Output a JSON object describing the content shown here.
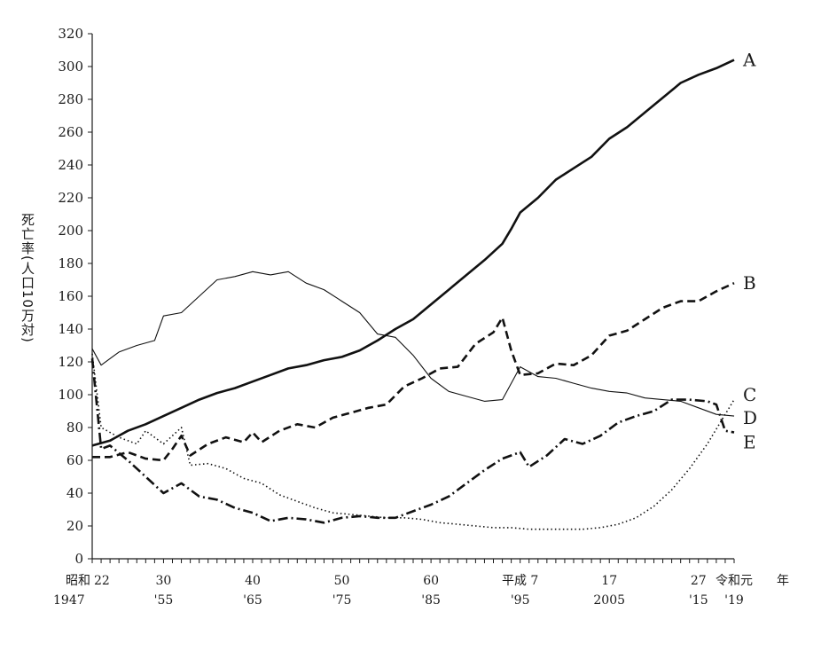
{
  "chart_data": {
    "type": "line",
    "ylabel": "死亡率(人口10万対)",
    "ylim": [
      0,
      320
    ],
    "yticks": [
      0,
      20,
      40,
      60,
      80,
      100,
      120,
      140,
      160,
      180,
      200,
      220,
      240,
      260,
      280,
      300,
      320
    ],
    "xlim": [
      1947,
      2019
    ],
    "x_tick_labels": [
      {
        "year": 1947,
        "era": "昭和 22",
        "western": "1947"
      },
      {
        "year": 1955,
        "era": "30",
        "western": "'55"
      },
      {
        "year": 1965,
        "era": "40",
        "western": "'65"
      },
      {
        "year": 1975,
        "era": "50",
        "western": "'75"
      },
      {
        "year": 1985,
        "era": "60",
        "western": "'85"
      },
      {
        "year": 1995,
        "era": "平成 7",
        "western": "'95"
      },
      {
        "year": 2005,
        "era": "17",
        "western": "2005"
      },
      {
        "year": 2015,
        "era": "27",
        "western": "'15"
      },
      {
        "year": 2019,
        "era": "令和元",
        "western": "'19"
      }
    ],
    "x_unit_label": "年",
    "series": [
      {
        "name": "A",
        "style": "solid-thick",
        "points": [
          [
            1947,
            69
          ],
          [
            1949,
            72
          ],
          [
            1951,
            78
          ],
          [
            1953,
            82
          ],
          [
            1955,
            87
          ],
          [
            1957,
            92
          ],
          [
            1959,
            97
          ],
          [
            1961,
            101
          ],
          [
            1963,
            104
          ],
          [
            1965,
            108
          ],
          [
            1967,
            112
          ],
          [
            1969,
            116
          ],
          [
            1971,
            118
          ],
          [
            1973,
            121
          ],
          [
            1975,
            123
          ],
          [
            1977,
            127
          ],
          [
            1979,
            133
          ],
          [
            1981,
            140
          ],
          [
            1983,
            146
          ],
          [
            1985,
            155
          ],
          [
            1987,
            164
          ],
          [
            1989,
            173
          ],
          [
            1991,
            182
          ],
          [
            1993,
            192
          ],
          [
            1994,
            201
          ],
          [
            1995,
            211
          ],
          [
            1997,
            220
          ],
          [
            1999,
            231
          ],
          [
            2001,
            238
          ],
          [
            2003,
            245
          ],
          [
            2005,
            256
          ],
          [
            2007,
            263
          ],
          [
            2009,
            272
          ],
          [
            2011,
            281
          ],
          [
            2013,
            290
          ],
          [
            2015,
            295
          ],
          [
            2017,
            299
          ],
          [
            2019,
            304
          ]
        ]
      },
      {
        "name": "B",
        "style": "dashed-thick",
        "points": [
          [
            1947,
            62
          ],
          [
            1949,
            62
          ],
          [
            1951,
            65
          ],
          [
            1953,
            61
          ],
          [
            1955,
            60
          ],
          [
            1956,
            67
          ],
          [
            1957,
            75
          ],
          [
            1958,
            63
          ],
          [
            1960,
            70
          ],
          [
            1962,
            74
          ],
          [
            1964,
            71
          ],
          [
            1965,
            77
          ],
          [
            1966,
            71
          ],
          [
            1968,
            78
          ],
          [
            1970,
            82
          ],
          [
            1972,
            80
          ],
          [
            1974,
            86
          ],
          [
            1976,
            89
          ],
          [
            1978,
            92
          ],
          [
            1980,
            94
          ],
          [
            1982,
            105
          ],
          [
            1984,
            110
          ],
          [
            1986,
            116
          ],
          [
            1988,
            117
          ],
          [
            1990,
            131
          ],
          [
            1992,
            138
          ],
          [
            1993,
            147
          ],
          [
            1994,
            127
          ],
          [
            1995,
            112
          ],
          [
            1997,
            113
          ],
          [
            1999,
            119
          ],
          [
            2001,
            118
          ],
          [
            2003,
            124
          ],
          [
            2005,
            136
          ],
          [
            2007,
            139
          ],
          [
            2009,
            146
          ],
          [
            2011,
            153
          ],
          [
            2013,
            157
          ],
          [
            2015,
            157
          ],
          [
            2017,
            163
          ],
          [
            2019,
            168
          ]
        ]
      },
      {
        "name": "C",
        "style": "dotted",
        "points": [
          [
            1947,
            125
          ],
          [
            1948,
            80
          ],
          [
            1950,
            74
          ],
          [
            1952,
            70
          ],
          [
            1953,
            78
          ],
          [
            1955,
            70
          ],
          [
            1957,
            80
          ],
          [
            1958,
            57
          ],
          [
            1960,
            58
          ],
          [
            1962,
            55
          ],
          [
            1964,
            49
          ],
          [
            1966,
            46
          ],
          [
            1968,
            39
          ],
          [
            1970,
            35
          ],
          [
            1972,
            31
          ],
          [
            1974,
            28
          ],
          [
            1976,
            27
          ],
          [
            1978,
            26
          ],
          [
            1980,
            25
          ],
          [
            1982,
            25
          ],
          [
            1984,
            24
          ],
          [
            1986,
            22
          ],
          [
            1988,
            21
          ],
          [
            1990,
            20
          ],
          [
            1992,
            19
          ],
          [
            1994,
            19
          ],
          [
            1996,
            18
          ],
          [
            1998,
            18
          ],
          [
            2000,
            18
          ],
          [
            2002,
            18
          ],
          [
            2004,
            19
          ],
          [
            2006,
            21
          ],
          [
            2008,
            25
          ],
          [
            2010,
            32
          ],
          [
            2012,
            42
          ],
          [
            2014,
            55
          ],
          [
            2016,
            70
          ],
          [
            2018,
            88
          ],
          [
            2019,
            97
          ]
        ]
      },
      {
        "name": "D",
        "style": "solid-thin",
        "points": [
          [
            1947,
            128
          ],
          [
            1948,
            118
          ],
          [
            1950,
            126
          ],
          [
            1952,
            130
          ],
          [
            1954,
            133
          ],
          [
            1955,
            148
          ],
          [
            1957,
            150
          ],
          [
            1959,
            160
          ],
          [
            1961,
            170
          ],
          [
            1963,
            172
          ],
          [
            1965,
            175
          ],
          [
            1967,
            173
          ],
          [
            1969,
            175
          ],
          [
            1971,
            168
          ],
          [
            1973,
            164
          ],
          [
            1975,
            157
          ],
          [
            1977,
            150
          ],
          [
            1979,
            137
          ],
          [
            1981,
            135
          ],
          [
            1983,
            124
          ],
          [
            1985,
            110
          ],
          [
            1987,
            102
          ],
          [
            1989,
            99
          ],
          [
            1991,
            96
          ],
          [
            1993,
            97
          ],
          [
            1995,
            117
          ],
          [
            1997,
            111
          ],
          [
            1999,
            110
          ],
          [
            2001,
            107
          ],
          [
            2003,
            104
          ],
          [
            2005,
            102
          ],
          [
            2007,
            101
          ],
          [
            2009,
            98
          ],
          [
            2011,
            97
          ],
          [
            2013,
            96
          ],
          [
            2015,
            92
          ],
          [
            2017,
            88
          ],
          [
            2019,
            87
          ]
        ]
      },
      {
        "name": "E",
        "style": "dash-dot-thick",
        "points": [
          [
            1947,
            122
          ],
          [
            1948,
            67
          ],
          [
            1949,
            69
          ],
          [
            1951,
            60
          ],
          [
            1953,
            50
          ],
          [
            1955,
            40
          ],
          [
            1957,
            46
          ],
          [
            1959,
            38
          ],
          [
            1961,
            36
          ],
          [
            1963,
            31
          ],
          [
            1965,
            28
          ],
          [
            1967,
            23
          ],
          [
            1969,
            25
          ],
          [
            1971,
            24
          ],
          [
            1973,
            22
          ],
          [
            1975,
            25
          ],
          [
            1977,
            26
          ],
          [
            1979,
            25
          ],
          [
            1981,
            25
          ],
          [
            1983,
            29
          ],
          [
            1985,
            33
          ],
          [
            1987,
            38
          ],
          [
            1989,
            46
          ],
          [
            1991,
            54
          ],
          [
            1993,
            61
          ],
          [
            1995,
            65
          ],
          [
            1996,
            56
          ],
          [
            1998,
            63
          ],
          [
            2000,
            73
          ],
          [
            2002,
            70
          ],
          [
            2004,
            75
          ],
          [
            2006,
            83
          ],
          [
            2008,
            87
          ],
          [
            2010,
            90
          ],
          [
            2012,
            97
          ],
          [
            2014,
            97
          ],
          [
            2016,
            96
          ],
          [
            2017,
            94
          ],
          [
            2018,
            78
          ],
          [
            2019,
            77
          ]
        ]
      }
    ]
  }
}
